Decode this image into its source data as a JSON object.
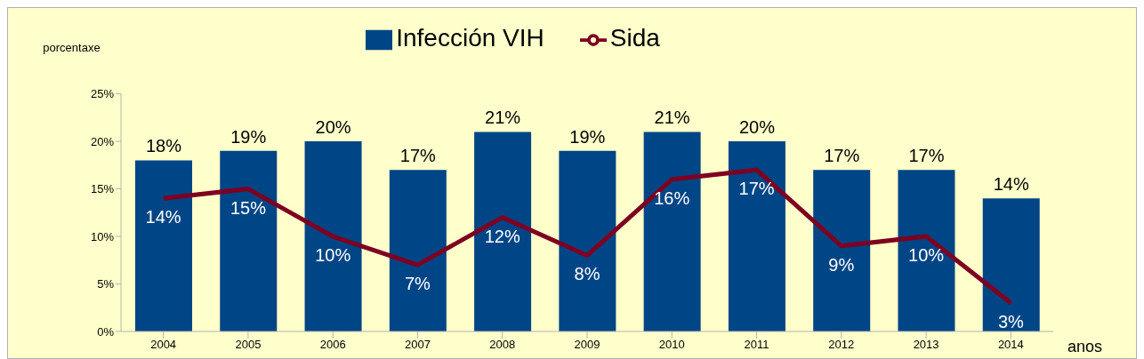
{
  "chart_data": {
    "type": "bar",
    "categories": [
      "2004",
      "2005",
      "2006",
      "2007",
      "2008",
      "2009",
      "2010",
      "2011",
      "2012",
      "2013",
      "2014"
    ],
    "series": [
      {
        "name": "Infección VIH",
        "color": "#004586",
        "values": [
          18,
          19,
          20,
          17,
          21,
          19,
          21,
          20,
          17,
          17,
          14
        ],
        "value_labels": [
          "18%",
          "19%",
          "20%",
          "17%",
          "21%",
          "19%",
          "21%",
          "20%",
          "17%",
          "17%",
          "14%"
        ]
      },
      {
        "name": "Sida",
        "type": "line",
        "color": "#7e0021",
        "values": [
          14,
          15,
          10,
          7,
          12,
          8,
          16,
          17,
          9,
          10,
          3
        ],
        "value_labels": [
          "14%",
          "15%",
          "10%",
          "7%",
          "12%",
          "8%",
          "16%",
          "17%",
          "9%",
          "10%",
          "3%"
        ]
      }
    ],
    "ylim": [
      0,
      25
    ],
    "yticks": [
      {
        "value": 0,
        "label": "0%"
      },
      {
        "value": 5,
        "label": "5%"
      },
      {
        "value": 10,
        "label": "10%"
      },
      {
        "value": 15,
        "label": "15%"
      },
      {
        "value": 20,
        "label": "20%"
      },
      {
        "value": 25,
        "label": "25%"
      }
    ],
    "ylabel": "porcentaxe",
    "xlabel": "anos",
    "legend": "top"
  }
}
